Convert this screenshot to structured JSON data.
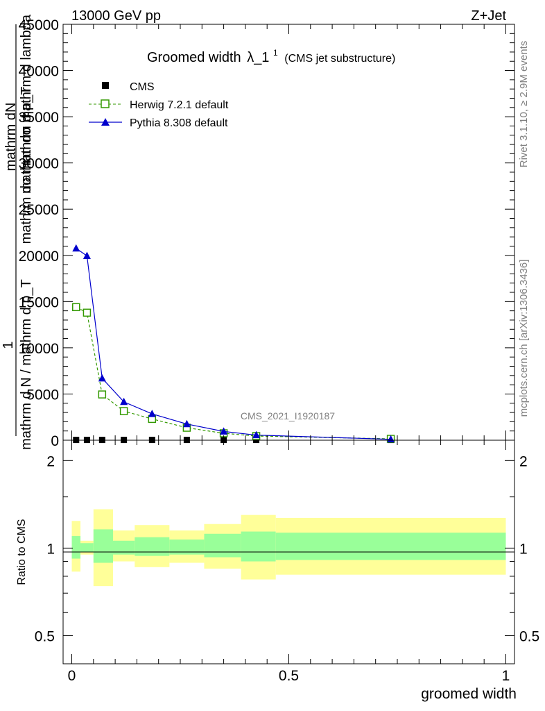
{
  "header": {
    "energy": "13000 GeV pp",
    "process": "Z+Jet"
  },
  "side_text": {
    "rivet": "Rivet 3.1.10, ≥ 2.9M events",
    "mcplots": "mcplots.cern.ch [arXiv:1306.3436]"
  },
  "chart_data": [
    {
      "type": "line",
      "title_main": "Groomed width",
      "title_lambda": "λ_1",
      "title_sup": "1",
      "title_sub": "(CMS jet substructure)",
      "ylabel_num": "1",
      "ylabel_den_lines": [
        "mathrm d N / mathrm d p_T",
        "mathrm dσ mathrm d p_T",
        "mathrm dN",
        "mathrm dσ mathrm d lambda"
      ],
      "analysis_watermark": "CMS_2021_I1920187",
      "xlim": [
        -0.02,
        1.02
      ],
      "ylim": [
        0,
        45000
      ],
      "y_tick_values": [
        0,
        5000,
        10000,
        15000,
        20000,
        25000,
        30000,
        35000,
        40000,
        45000
      ],
      "y_tick_labels": [
        "0",
        "5000",
        "10000",
        "15000",
        "20000",
        "25000",
        "30000",
        "35000",
        "40000",
        "45000"
      ],
      "legend_position": "top-left",
      "series": [
        {
          "name": "CMS",
          "marker": "square-filled",
          "color": "#000000",
          "x": [
            0.01,
            0.035,
            0.07,
            0.12,
            0.185,
            0.265,
            0.35,
            0.425,
            0.735
          ],
          "y": [
            30,
            30,
            30,
            30,
            30,
            30,
            30,
            30,
            30
          ]
        },
        {
          "name": "Herwig 7.2.1 default",
          "marker": "square-open",
          "color": "#339900",
          "x": [
            0.01,
            0.035,
            0.07,
            0.12,
            0.185,
            0.265,
            0.35,
            0.425,
            0.735
          ],
          "y": [
            14400,
            13800,
            4950,
            3150,
            2300,
            1350,
            750,
            450,
            150
          ]
        },
        {
          "name": "Pythia 8.308 default",
          "marker": "triangle-filled",
          "color": "#0000cc",
          "x": [
            0.01,
            0.035,
            0.07,
            0.12,
            0.185,
            0.265,
            0.35,
            0.425,
            0.735
          ],
          "y": [
            20750,
            19950,
            6700,
            4150,
            2850,
            1750,
            950,
            550,
            100
          ]
        }
      ]
    },
    {
      "type": "area",
      "ylabel": "Ratio to CMS",
      "xlabel": "groomed width",
      "xlim": [
        -0.02,
        1.02
      ],
      "ylim": [
        0.4,
        2.35
      ],
      "y_scale": "log",
      "y_tick_values": [
        0.5,
        1,
        2
      ],
      "y_tick_labels": [
        "0.5",
        "1",
        "2"
      ],
      "x_tick_values": [
        0,
        0.5,
        1
      ],
      "x_tick_labels": [
        "0",
        "0.5",
        "1"
      ],
      "band_colors": {
        "inner": "#99ff99",
        "outer": "#ffff99"
      },
      "bins": [
        {
          "lo": 0.0,
          "hi": 0.02,
          "inner": [
            0.92,
            1.1
          ],
          "outer": [
            0.83,
            1.24
          ]
        },
        {
          "lo": 0.02,
          "hi": 0.05,
          "inner": [
            0.97,
            1.04
          ],
          "outer": [
            0.95,
            1.06
          ]
        },
        {
          "lo": 0.05,
          "hi": 0.095,
          "inner": [
            0.89,
            1.16
          ],
          "outer": [
            0.74,
            1.36
          ]
        },
        {
          "lo": 0.095,
          "hi": 0.145,
          "inner": [
            0.95,
            1.06
          ],
          "outer": [
            0.9,
            1.15
          ]
        },
        {
          "lo": 0.145,
          "hi": 0.225,
          "inner": [
            0.94,
            1.09
          ],
          "outer": [
            0.86,
            1.2
          ]
        },
        {
          "lo": 0.225,
          "hi": 0.305,
          "inner": [
            0.95,
            1.07
          ],
          "outer": [
            0.89,
            1.15
          ]
        },
        {
          "lo": 0.305,
          "hi": 0.39,
          "inner": [
            0.93,
            1.12
          ],
          "outer": [
            0.85,
            1.21
          ]
        },
        {
          "lo": 0.39,
          "hi": 0.47,
          "inner": [
            0.9,
            1.14
          ],
          "outer": [
            0.78,
            1.3
          ]
        },
        {
          "lo": 0.47,
          "hi": 1.0,
          "inner": [
            0.91,
            1.13
          ],
          "outer": [
            0.81,
            1.27
          ]
        }
      ]
    }
  ]
}
